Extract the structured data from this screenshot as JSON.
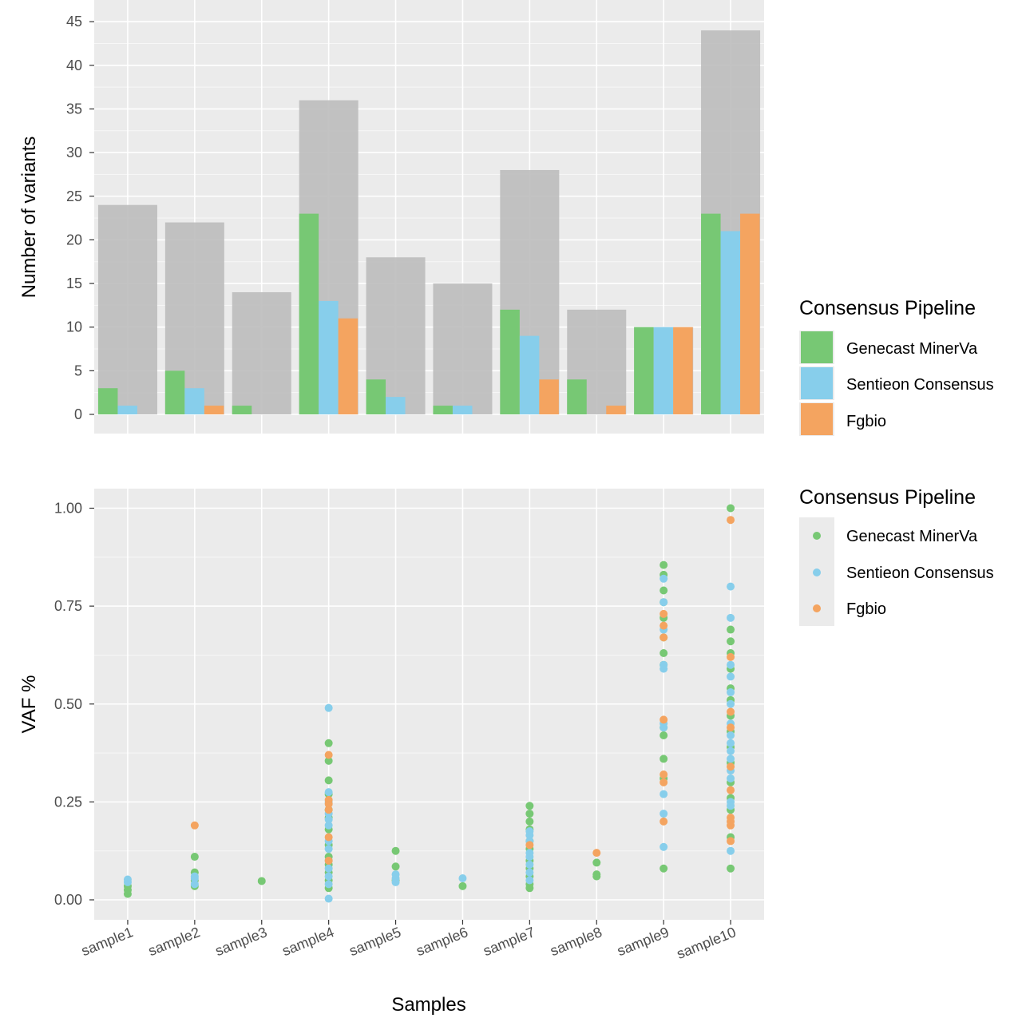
{
  "chart_data": [
    {
      "type": "bar",
      "title": "",
      "xlabel": "",
      "ylabel": "Number of variants",
      "ylim": [
        0,
        47
      ],
      "yticks": [
        0,
        5,
        10,
        15,
        20,
        25,
        30,
        35,
        40,
        45
      ],
      "grid": true,
      "categories": [
        "sample1",
        "sample2",
        "sample3",
        "sample4",
        "sample5",
        "sample6",
        "sample7",
        "sample8",
        "sample9",
        "sample10"
      ],
      "total": {
        "name": "Total",
        "color": "#bdbdbd",
        "values": [
          24,
          22,
          14,
          36,
          18,
          15,
          28,
          12,
          10,
          44
        ]
      },
      "series": [
        {
          "name": "Genecast MinerVa",
          "color": "#77c874",
          "values": [
            3,
            5,
            1,
            23,
            4,
            1,
            12,
            4,
            10,
            23
          ]
        },
        {
          "name": "Sentieon Consensus",
          "color": "#87ceeb",
          "values": [
            1,
            3,
            0,
            13,
            2,
            1,
            9,
            0,
            10,
            21
          ]
        },
        {
          "name": "Fgbio",
          "color": "#f4a460",
          "values": [
            0,
            1,
            0,
            11,
            0,
            0,
            4,
            1,
            10,
            23
          ]
        }
      ],
      "legend": {
        "title": "Consensus Pipeline",
        "position": "right",
        "labels": [
          "Genecast MinerVa",
          "Sentieon Consensus",
          "Fgbio"
        ]
      }
    },
    {
      "type": "scatter",
      "title": "",
      "xlabel": "Samples",
      "ylabel": "VAF %",
      "ylim": [
        -0.05,
        1.05
      ],
      "yticks": [
        "0.00",
        "0.25",
        "0.50",
        "0.75",
        "1.00"
      ],
      "grid": true,
      "categories": [
        "sample1",
        "sample2",
        "sample3",
        "sample4",
        "sample5",
        "sample6",
        "sample7",
        "sample8",
        "sample9",
        "sample10"
      ],
      "series": [
        {
          "name": "Genecast MinerVa",
          "color": "#77c874",
          "points": [
            [
              1,
              0.015
            ],
            [
              1,
              0.025
            ],
            [
              1,
              0.035
            ],
            [
              2,
              0.035
            ],
            [
              2,
              0.05
            ],
            [
              2,
              0.07
            ],
            [
              2,
              0.11
            ],
            [
              3,
              0.048
            ],
            [
              4,
              0.03
            ],
            [
              4,
              0.05
            ],
            [
              4,
              0.07
            ],
            [
              4,
              0.09
            ],
            [
              4,
              0.11
            ],
            [
              4,
              0.14
            ],
            [
              4,
              0.18
            ],
            [
              4,
              0.21
            ],
            [
              4,
              0.23
            ],
            [
              4,
              0.27
            ],
            [
              4,
              0.305
            ],
            [
              4,
              0.355
            ],
            [
              4,
              0.4
            ],
            [
              5,
              0.05
            ],
            [
              5,
              0.085
            ],
            [
              5,
              0.125
            ],
            [
              6,
              0.035
            ],
            [
              7,
              0.03
            ],
            [
              7,
              0.04
            ],
            [
              7,
              0.06
            ],
            [
              7,
              0.08
            ],
            [
              7,
              0.1
            ],
            [
              7,
              0.13
            ],
            [
              7,
              0.15
            ],
            [
              7,
              0.18
            ],
            [
              7,
              0.2
            ],
            [
              7,
              0.22
            ],
            [
              7,
              0.24
            ],
            [
              8,
              0.06
            ],
            [
              8,
              0.065
            ],
            [
              8,
              0.095
            ],
            [
              9,
              0.08
            ],
            [
              9,
              0.31
            ],
            [
              9,
              0.36
            ],
            [
              9,
              0.42
            ],
            [
              9,
              0.44
            ],
            [
              9,
              0.6
            ],
            [
              9,
              0.63
            ],
            [
              9,
              0.67
            ],
            [
              9,
              0.72
            ],
            [
              9,
              0.76
            ],
            [
              9,
              0.79
            ],
            [
              9,
              0.83
            ],
            [
              9,
              0.855
            ],
            [
              10,
              0.08
            ],
            [
              10,
              0.16
            ],
            [
              10,
              0.23
            ],
            [
              10,
              0.26
            ],
            [
              10,
              0.3
            ],
            [
              10,
              0.35
            ],
            [
              10,
              0.39
            ],
            [
              10,
              0.43
            ],
            [
              10,
              0.47
            ],
            [
              10,
              0.51
            ],
            [
              10,
              0.54
            ],
            [
              10,
              0.59
            ],
            [
              10,
              0.63
            ],
            [
              10,
              0.66
            ],
            [
              10,
              0.69
            ],
            [
              10,
              1.0
            ]
          ]
        },
        {
          "name": "Sentieon Consensus",
          "color": "#87ceeb",
          "points": [
            [
              1,
              0.045
            ],
            [
              1,
              0.052
            ],
            [
              2,
              0.04
            ],
            [
              2,
              0.055
            ],
            [
              2,
              0.06
            ],
            [
              4,
              0.003
            ],
            [
              4,
              0.04
            ],
            [
              4,
              0.06
            ],
            [
              4,
              0.08
            ],
            [
              4,
              0.1
            ],
            [
              4,
              0.13
            ],
            [
              4,
              0.15
            ],
            [
              4,
              0.19
            ],
            [
              4,
              0.205
            ],
            [
              4,
              0.22
            ],
            [
              4,
              0.25
            ],
            [
              4,
              0.275
            ],
            [
              4,
              0.49
            ],
            [
              5,
              0.045
            ],
            [
              5,
              0.055
            ],
            [
              5,
              0.065
            ],
            [
              6,
              0.055
            ],
            [
              7,
              0.05
            ],
            [
              7,
              0.07
            ],
            [
              7,
              0.09
            ],
            [
              7,
              0.11
            ],
            [
              7,
              0.12
            ],
            [
              7,
              0.15
            ],
            [
              7,
              0.165
            ],
            [
              7,
              0.175
            ],
            [
              9,
              0.135
            ],
            [
              9,
              0.22
            ],
            [
              9,
              0.27
            ],
            [
              9,
              0.44
            ],
            [
              9,
              0.45
            ],
            [
              9,
              0.59
            ],
            [
              9,
              0.6
            ],
            [
              9,
              0.69
            ],
            [
              9,
              0.76
            ],
            [
              9,
              0.82
            ],
            [
              10,
              0.125
            ],
            [
              10,
              0.24
            ],
            [
              10,
              0.25
            ],
            [
              10,
              0.31
            ],
            [
              10,
              0.33
            ],
            [
              10,
              0.36
            ],
            [
              10,
              0.38
            ],
            [
              10,
              0.4
            ],
            [
              10,
              0.42
            ],
            [
              10,
              0.45
            ],
            [
              10,
              0.5
            ],
            [
              10,
              0.53
            ],
            [
              10,
              0.57
            ],
            [
              10,
              0.6
            ],
            [
              10,
              0.72
            ],
            [
              10,
              0.8
            ]
          ]
        },
        {
          "name": "Fgbio",
          "color": "#f4a460",
          "points": [
            [
              2,
              0.19
            ],
            [
              4,
              0.1
            ],
            [
              4,
              0.16
            ],
            [
              4,
              0.23
            ],
            [
              4,
              0.245
            ],
            [
              4,
              0.255
            ],
            [
              4,
              0.37
            ],
            [
              7,
              0.14
            ],
            [
              8,
              0.12
            ],
            [
              9,
              0.2
            ],
            [
              9,
              0.3
            ],
            [
              9,
              0.32
            ],
            [
              9,
              0.46
            ],
            [
              9,
              0.67
            ],
            [
              9,
              0.7
            ],
            [
              9,
              0.73
            ],
            [
              10,
              0.15
            ],
            [
              10,
              0.19
            ],
            [
              10,
              0.2
            ],
            [
              10,
              0.21
            ],
            [
              10,
              0.28
            ],
            [
              10,
              0.34
            ],
            [
              10,
              0.44
            ],
            [
              10,
              0.48
            ],
            [
              10,
              0.62
            ],
            [
              10,
              0.97
            ]
          ]
        }
      ],
      "legend": {
        "title": "Consensus Pipeline",
        "position": "right",
        "labels": [
          "Genecast MinerVa",
          "Sentieon Consensus",
          "Fgbio"
        ]
      }
    }
  ]
}
